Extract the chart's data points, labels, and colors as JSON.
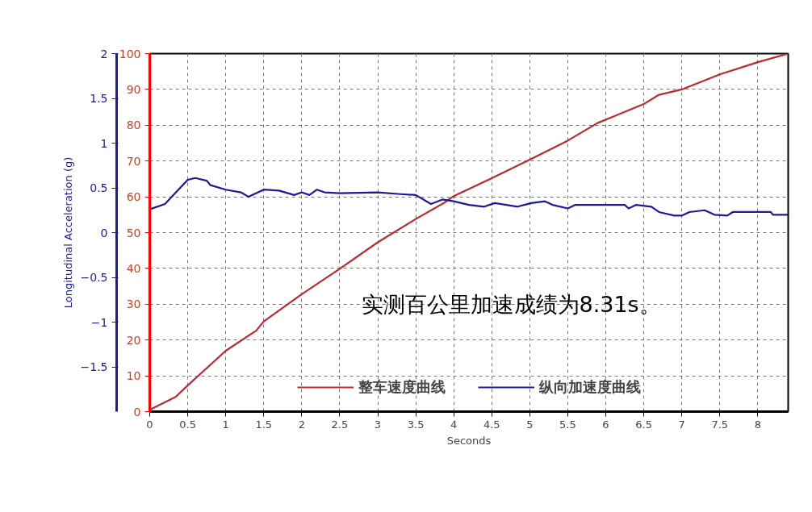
{
  "chart_data": {
    "type": "line",
    "xlabel": "Seconds",
    "y2label": "Longitudinal Acceleration (g)",
    "annotations": [
      "实测百公里加速成绩为8.31s。"
    ],
    "xlim": [
      0,
      8.4
    ],
    "xticks": [
      0,
      0.5,
      1,
      1.5,
      2,
      2.5,
      3,
      3.5,
      4,
      4.5,
      5,
      5.5,
      6,
      6.5,
      7,
      7.5,
      8
    ],
    "ylim": [
      0,
      100
    ],
    "yticks": [
      0,
      10,
      20,
      30,
      40,
      50,
      60,
      70,
      80,
      90,
      100
    ],
    "y2lim": [
      -2,
      2
    ],
    "y2ticks": [
      -1.5,
      -1,
      -0.5,
      0,
      0.5,
      1,
      1.5,
      2
    ],
    "grid": true,
    "legend": "bottom",
    "line_style": "solid",
    "series": [
      {
        "name": "整车速度曲线",
        "color": "#c0282d",
        "x": [
          0,
          0.34,
          0.53,
          1.0,
          1.4,
          1.5,
          2.0,
          2.5,
          3.0,
          3.5,
          3.88,
          4.0,
          4.5,
          5.0,
          5.5,
          5.89,
          6.5,
          6.7,
          7.0,
          7.5,
          8.0,
          8.4
        ],
        "values": [
          0.5,
          4.1,
          7.9,
          17,
          22.6,
          25.2,
          32.8,
          39.9,
          47.3,
          53.8,
          58.4,
          60.2,
          65.2,
          70.4,
          75.7,
          80.6,
          85.9,
          88.5,
          90,
          94.2,
          97.6,
          100
        ]
      },
      {
        "name": "纵向加速度曲线",
        "color": "#1a1a9c",
        "axis": "y2",
        "x": [
          0,
          0.2,
          0.5,
          0.6,
          0.75,
          0.8,
          1.0,
          1.2,
          1.3,
          1.5,
          1.7,
          1.9,
          2.0,
          2.1,
          2.2,
          2.3,
          2.5,
          3.0,
          3.3,
          3.5,
          3.7,
          3.85,
          4.0,
          4.2,
          4.4,
          4.54,
          4.84,
          5.02,
          5.2,
          5.3,
          5.5,
          5.6,
          6.0,
          6.25,
          6.3,
          6.4,
          6.6,
          6.7,
          6.9,
          7.0,
          7.1,
          7.3,
          7.43,
          7.6,
          7.67,
          8.17,
          8.2,
          8.4
        ],
        "values": [
          0.26,
          0.32,
          0.59,
          0.61,
          0.58,
          0.53,
          0.48,
          0.45,
          0.4,
          0.48,
          0.47,
          0.42,
          0.45,
          0.42,
          0.48,
          0.45,
          0.44,
          0.45,
          0.43,
          0.42,
          0.32,
          0.37,
          0.35,
          0.31,
          0.29,
          0.33,
          0.29,
          0.33,
          0.35,
          0.31,
          0.27,
          0.31,
          0.31,
          0.31,
          0.27,
          0.31,
          0.29,
          0.23,
          0.19,
          0.19,
          0.23,
          0.25,
          0.2,
          0.19,
          0.23,
          0.23,
          0.2,
          0.2
        ]
      }
    ]
  }
}
